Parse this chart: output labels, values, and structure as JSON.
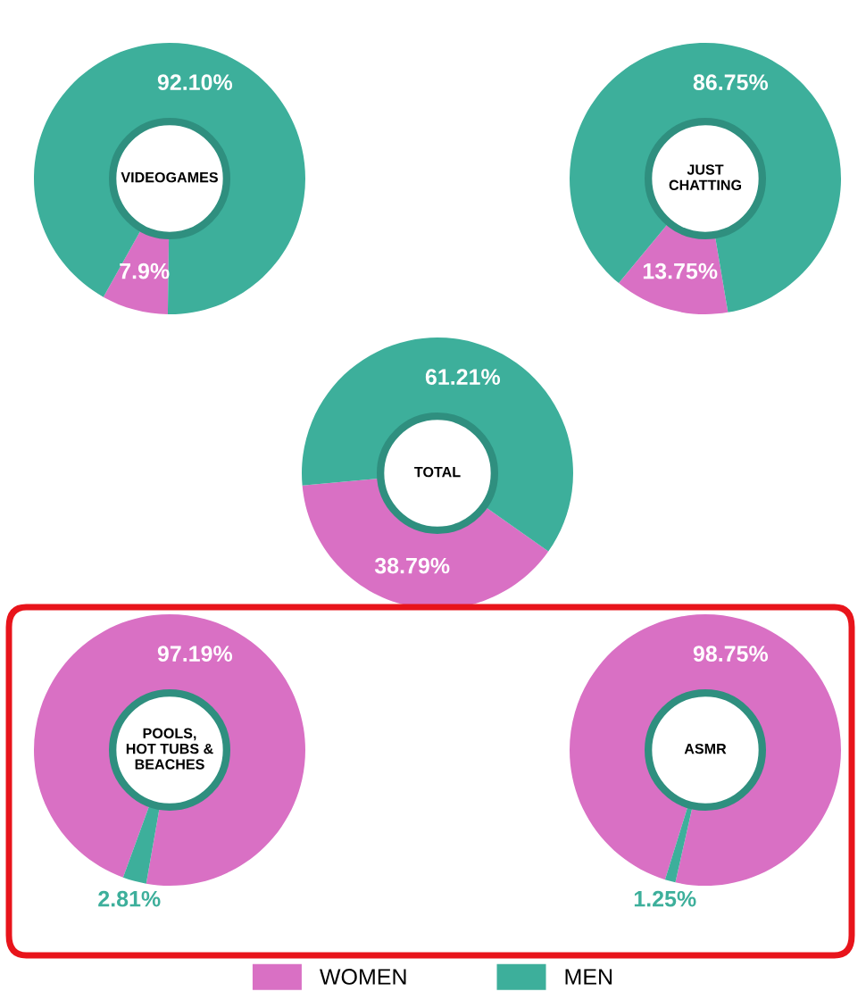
{
  "chart_data": [
    {
      "type": "donut",
      "title": "VIDEOGAMES",
      "categories": [
        "WOMEN",
        "MEN"
      ],
      "values": [
        7.9,
        92.1
      ],
      "colors": [
        "#d970c4",
        "#3daf9b"
      ],
      "value_labels": [
        "7.9%",
        "92.10%"
      ],
      "legend": "bottom"
    },
    {
      "type": "donut",
      "title": "JUST\nCHATTING",
      "categories": [
        null,
        null
      ],
      "values": [
        13.75,
        86.75
      ],
      "colors": [
        "#d970c4",
        "#3daf9b"
      ],
      "value_labels": [
        "13.75%",
        "86.75%"
      ]
    },
    {
      "type": "donut",
      "title": "TOTAL",
      "categories": [
        null,
        null
      ],
      "values": [
        38.79,
        61.21
      ],
      "colors": [
        "#d970c4",
        "#3daf9b"
      ],
      "value_labels": [
        "38.79%",
        "61.21%"
      ]
    },
    {
      "type": "donut",
      "title": "POOLS,\nHOT TUBS &\nBEACHES",
      "categories": [
        null,
        null
      ],
      "values": [
        97.19,
        2.81
      ],
      "colors": [
        "#d970c4",
        "#3daf9b"
      ],
      "value_labels": [
        "97.19%",
        "2.81%"
      ]
    },
    {
      "type": "donut",
      "title": "ASMR",
      "categories": [
        null,
        null
      ],
      "values": [
        98.75,
        1.25
      ],
      "colors": [
        "#d970c4",
        "#3daf9b"
      ],
      "value_labels": [
        "98.75%",
        "1.25%"
      ]
    }
  ]
}
